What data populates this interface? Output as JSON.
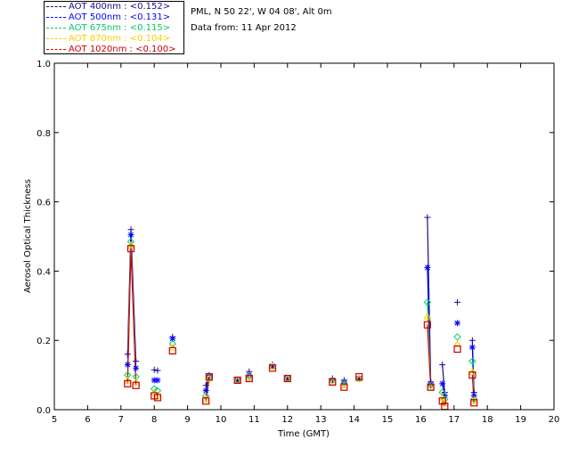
{
  "header": {
    "site_line": "PML, N 50 22', W 04 08', Alt 0m",
    "date_line": "Data from: 11 Apr 2012"
  },
  "legend": [
    {
      "label": "AOT  400nm : <0.152>",
      "color": "#1a0a8c"
    },
    {
      "label": "AOT  500nm : <0.131>",
      "color": "#0000ff"
    },
    {
      "label": "AOT  675nm : <0.115>",
      "color": "#00cc66"
    },
    {
      "label": "AOT  870nm : <0.104>",
      "color": "#ffcc00"
    },
    {
      "label": "AOT 1020nm : <0.100>",
      "color": "#cc0000"
    }
  ],
  "chart_data": {
    "type": "scatter",
    "xlabel": "Time (GMT)",
    "ylabel": "Aerosol Optical Thickness",
    "xlim": [
      5,
      20
    ],
    "ylim": [
      0,
      1.0
    ],
    "xticks": [
      5,
      6,
      7,
      8,
      9,
      10,
      11,
      12,
      13,
      14,
      15,
      16,
      17,
      18,
      19,
      20
    ],
    "yticks": [
      "0.0",
      "0.2",
      "0.4",
      "0.6",
      "0.8",
      "1.0"
    ],
    "yticks_values": [
      0,
      0.2,
      0.4,
      0.6,
      0.8,
      1.0
    ],
    "grid": false,
    "legend_position": "top-left-outside",
    "series": [
      {
        "name": "AOT  400nm : <0.152>",
        "color": "#1a0a8c",
        "marker": "plus",
        "x": [
          7.2,
          7.3,
          7.45,
          8.0,
          8.1,
          8.55,
          9.55,
          9.65,
          10.5,
          10.85,
          11.55,
          12.0,
          13.35,
          13.7,
          14.15,
          16.2,
          16.3,
          16.65,
          16.72,
          17.1,
          17.55,
          17.6
        ],
        "y": [
          0.16,
          0.52,
          0.14,
          0.115,
          0.113,
          0.21,
          0.07,
          0.1,
          0.085,
          0.11,
          0.13,
          0.09,
          0.09,
          0.085,
          0.09,
          0.555,
          0.08,
          0.13,
          0.05,
          0.31,
          0.2,
          0.05
        ]
      },
      {
        "name": "AOT  500nm : <0.131>",
        "color": "#0000ff",
        "marker": "asterisk",
        "x": [
          7.2,
          7.3,
          7.45,
          8.0,
          8.1,
          8.55,
          9.55,
          9.65,
          10.5,
          10.85,
          11.55,
          12.0,
          13.35,
          13.7,
          14.15,
          16.2,
          16.3,
          16.65,
          16.72,
          17.1,
          17.55,
          17.6
        ],
        "y": [
          0.13,
          0.505,
          0.12,
          0.085,
          0.085,
          0.205,
          0.055,
          0.095,
          0.085,
          0.1,
          0.125,
          0.09,
          0.085,
          0.08,
          0.09,
          0.41,
          0.075,
          0.075,
          0.04,
          0.25,
          0.18,
          0.04
        ]
      },
      {
        "name": "AOT  675nm : <0.115>",
        "color": "#00cc66",
        "marker": "diamond",
        "x": [
          7.2,
          7.3,
          7.45,
          8.0,
          8.1,
          8.55,
          9.55,
          9.65,
          10.5,
          10.85,
          11.55,
          12.0,
          13.35,
          13.7,
          14.15,
          16.2,
          16.3,
          16.65,
          16.72,
          17.1,
          17.55,
          17.6
        ],
        "y": [
          0.1,
          0.485,
          0.095,
          0.06,
          0.055,
          0.19,
          0.04,
          0.09,
          0.085,
          0.095,
          0.125,
          0.09,
          0.085,
          0.075,
          0.09,
          0.31,
          0.07,
          0.05,
          0.03,
          0.21,
          0.14,
          0.03
        ]
      },
      {
        "name": "AOT  870nm : <0.104>",
        "color": "#ffcc00",
        "marker": "triangle",
        "x": [
          7.2,
          7.3,
          7.45,
          8.0,
          8.1,
          8.55,
          9.55,
          9.65,
          10.5,
          10.85,
          11.55,
          12.0,
          13.35,
          13.7,
          14.15,
          16.2,
          16.3,
          16.65,
          16.72,
          17.1,
          17.55,
          17.6
        ],
        "y": [
          0.085,
          0.475,
          0.08,
          0.05,
          0.04,
          0.18,
          0.03,
          0.09,
          0.085,
          0.09,
          0.125,
          0.09,
          0.08,
          0.07,
          0.09,
          0.27,
          0.065,
          0.035,
          0.02,
          0.19,
          0.11,
          0.025
        ]
      },
      {
        "name": "AOT 1020nm : <0.100>",
        "color": "#cc0000",
        "marker": "square",
        "x": [
          7.2,
          7.3,
          7.45,
          8.0,
          8.1,
          8.55,
          9.55,
          9.65,
          10.5,
          10.85,
          11.55,
          12.0,
          13.35,
          13.7,
          14.15,
          16.2,
          16.3,
          16.65,
          16.72,
          17.1,
          17.55,
          17.6
        ],
        "y": [
          0.075,
          0.465,
          0.07,
          0.04,
          0.035,
          0.17,
          0.025,
          0.095,
          0.085,
          0.09,
          0.12,
          0.09,
          0.08,
          0.065,
          0.095,
          0.245,
          0.065,
          0.025,
          0.01,
          0.175,
          0.1,
          0.02
        ]
      }
    ],
    "connected_groups": [
      [
        0,
        1,
        2
      ],
      [
        6,
        7
      ],
      [
        15,
        16
      ],
      [
        17,
        18
      ],
      [
        20,
        21
      ]
    ]
  }
}
